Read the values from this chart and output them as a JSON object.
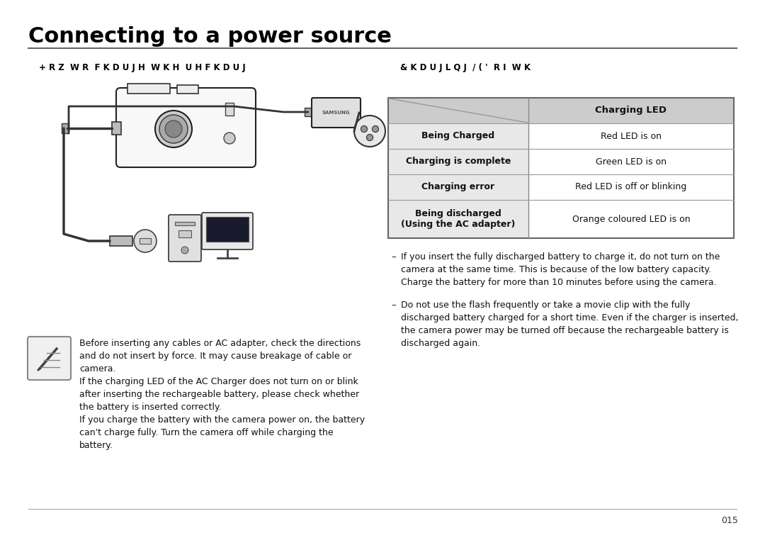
{
  "title": "Connecting to a power source",
  "title_fontsize": 22,
  "bg_color": "#ffffff",
  "page_number": "015",
  "left_heading": "+ R Z  W R  F K D U J H  W K H  U H F K D U J",
  "right_heading": "& K D U J L Q J  / ( '  R I  W K",
  "table_header_bg": "#cccccc",
  "table_row_bg_odd": "#e8e8e8",
  "table_row_bg_even": "#ffffff",
  "table_rows": [
    {
      "left": "Being Charged",
      "right": "Red LED is on"
    },
    {
      "left": "Charging is complete",
      "right": "Green LED is on"
    },
    {
      "left": "Charging error",
      "right": "Red LED is off or blinking"
    },
    {
      "left": "Being discharged\n(Using the AC adapter)",
      "right": "Orange coloured LED is on"
    }
  ],
  "table_header_right": "Charging LED",
  "note_text1": "Before inserting any cables or AC adapter, check the directions\nand do not insert by force. It may cause breakage of cable or\ncamera.",
  "note_text2": "If the charging LED of the AC Charger does not turn on or blink\nafter inserting the rechargeable battery, please check whether\nthe battery is inserted correctly.",
  "note_text3": "If you charge the battery with the camera power on, the battery\ncan't charge fully. Turn the camera off while charging the\nbattery.",
  "bullet_text1": "If you insert the fully discharged battery to charge it, do not turn on the\ncamera at the same time. This is because of the low battery capacity.\nCharge the battery for more than 10 minutes before using the camera.",
  "bullet_text2": "Do not use the flash frequently or take a movie clip with the fully\ndischarged battery charged for a short time. Even if the charger is inserted,\nthe camera power may be turned off because the rechargeable battery is\ndischarged again."
}
